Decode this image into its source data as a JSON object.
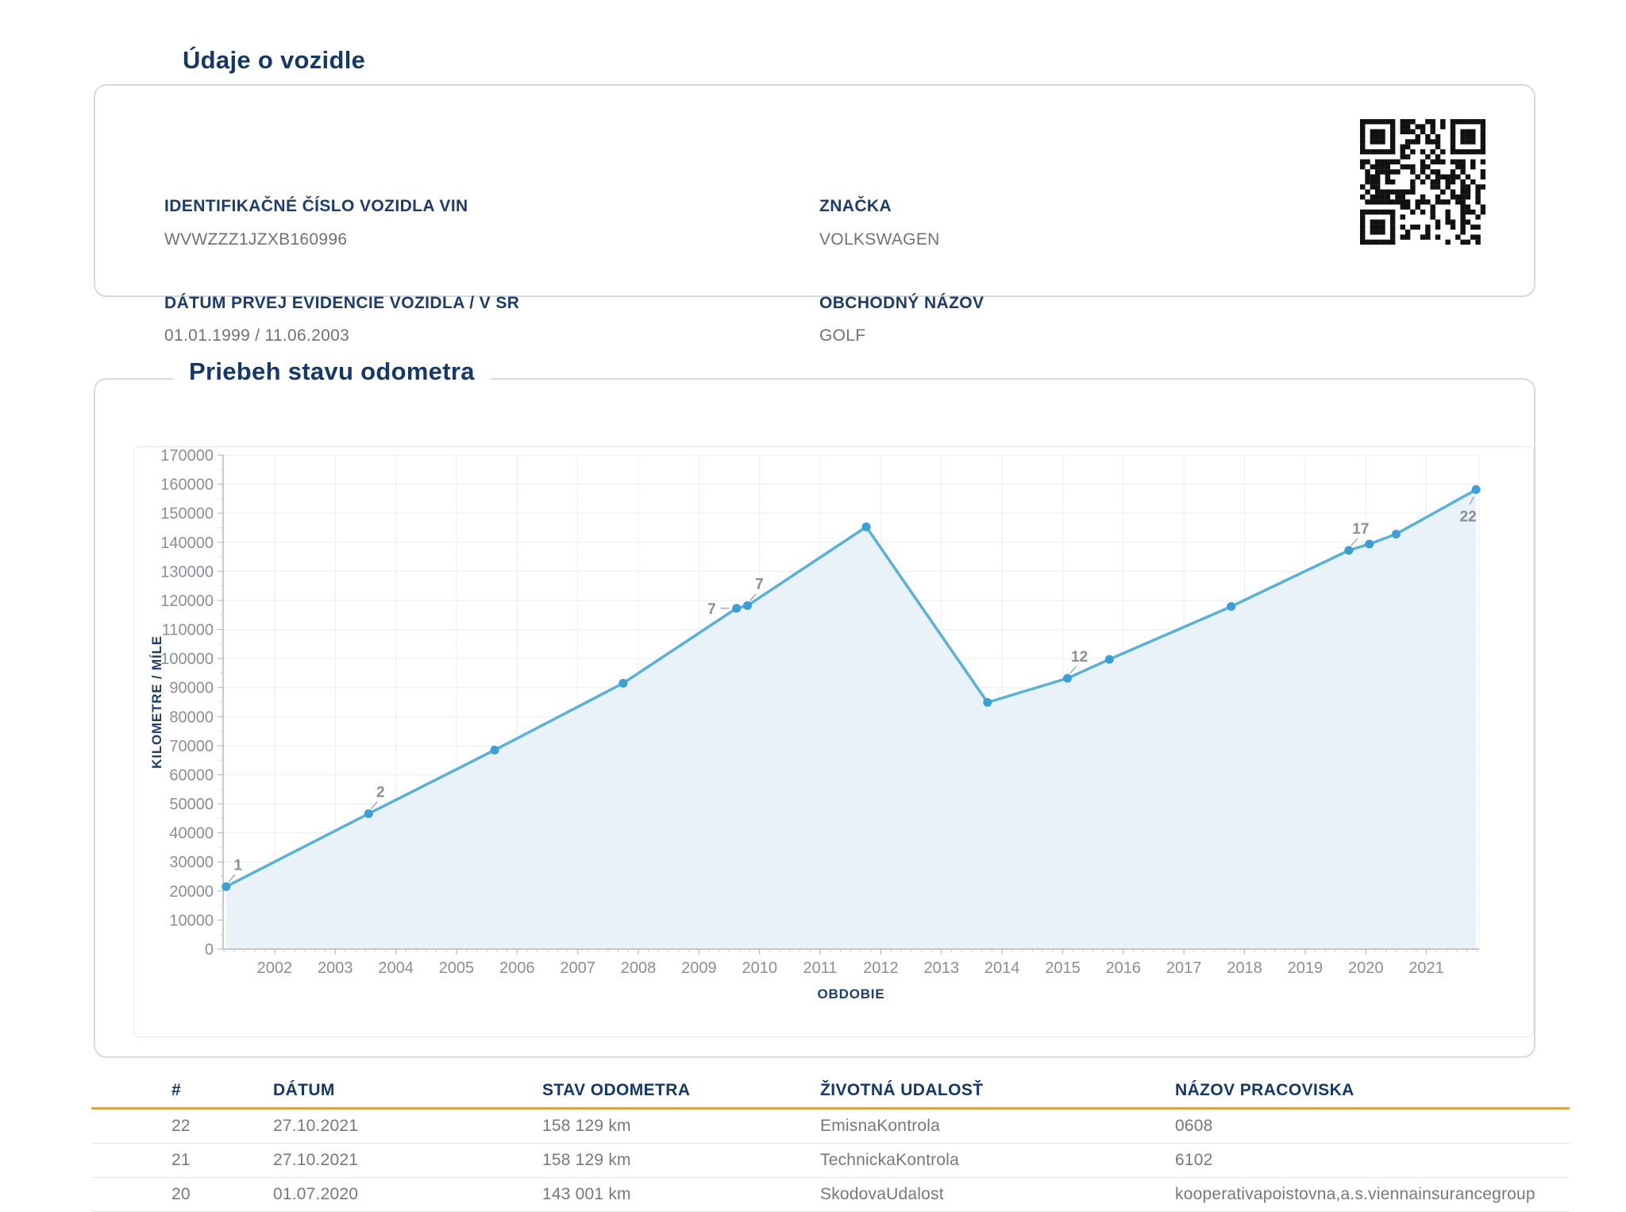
{
  "vehicle_card": {
    "title": "Údaje o vozidle",
    "fields": [
      {
        "label": "IDENTIFIKAČNÉ ČÍSLO VOZIDLA VIN",
        "value": "WVWZZZ1JZXB160996"
      },
      {
        "label": "DÁTUM PRVEJ EVIDENCIE VOZIDLA / V SR",
        "value": "01.01.1999 / 11.06.2003"
      },
      {
        "label": "ZNAČKA",
        "value": "VOLKSWAGEN"
      },
      {
        "label": "OBCHODNÝ NÁZOV",
        "value": "GOLF"
      }
    ],
    "qr_icon": "qr-code"
  },
  "odometer_section": {
    "title": "Priebeh stavu odometra"
  },
  "chart_data": {
    "type": "area",
    "title": "Priebeh stavu odometra",
    "xlabel": "OBDOBIE",
    "ylabel": "KILOMETRE / MÍLE",
    "ylim": [
      0,
      170000
    ],
    "ytick_step": 10000,
    "xlim": [
      2001.15,
      2021.87
    ],
    "xticks": [
      2002,
      2003,
      2004,
      2005,
      2006,
      2007,
      2008,
      2009,
      2010,
      2011,
      2012,
      2013,
      2014,
      2015,
      2016,
      2017,
      2018,
      2019,
      2020,
      2021
    ],
    "grid": true,
    "legend": "none",
    "line_color": "#57b1d8",
    "marker_color": "#399fd6",
    "fill_color": "#e9f1f9",
    "axis_color": "#b4b7bc",
    "grid_color": "#ededef",
    "tick_label_color": "#8a8e93",
    "point_label_color": "#8b8e92",
    "series": [
      {
        "name": "odometer_km",
        "points": [
          {
            "x": 2001.2,
            "y": 21500,
            "label": "1",
            "label_pos": "above"
          },
          {
            "x": 2003.55,
            "y": 46600,
            "label": "2",
            "label_pos": "above"
          },
          {
            "x": 2005.63,
            "y": 68500
          },
          {
            "x": 2007.75,
            "y": 91500
          },
          {
            "x": 2009.62,
            "y": 117300,
            "label": "7",
            "label_pos": "left"
          },
          {
            "x": 2009.8,
            "y": 118200,
            "label": "7",
            "label_pos": "above"
          },
          {
            "x": 2011.76,
            "y": 145300
          },
          {
            "x": 2013.76,
            "y": 84900
          },
          {
            "x": 2015.08,
            "y": 93200,
            "label": "12",
            "label_pos": "above"
          },
          {
            "x": 2015.77,
            "y": 99700
          },
          {
            "x": 2017.78,
            "y": 117900
          },
          {
            "x": 2019.72,
            "y": 137200,
            "label": "17",
            "label_pos": "above"
          },
          {
            "x": 2020.06,
            "y": 139400
          },
          {
            "x": 2020.5,
            "y": 142800
          },
          {
            "x": 2021.82,
            "y": 158129,
            "label": "22",
            "label_pos": "below"
          }
        ]
      }
    ]
  },
  "table": {
    "columns": [
      "#",
      "DÁTUM",
      "STAV ODOMETRA",
      "ŽIVOTNÁ UDALOSŤ",
      "NÁZOV PRACOVISKA"
    ],
    "rows": [
      [
        "22",
        "27.10.2021",
        "158 129 km",
        "EmisnaKontrola",
        "0608"
      ],
      [
        "21",
        "27.10.2021",
        "158 129 km",
        "TechnickaKontrola",
        "6102"
      ],
      [
        "20",
        "01.07.2020",
        "143 001 km",
        "SkodovaUdalost",
        "kooperativapoistovna,a.s.viennainsurancegroup"
      ]
    ],
    "header_color": "#14386b",
    "underline_color": "#e2a33c"
  }
}
